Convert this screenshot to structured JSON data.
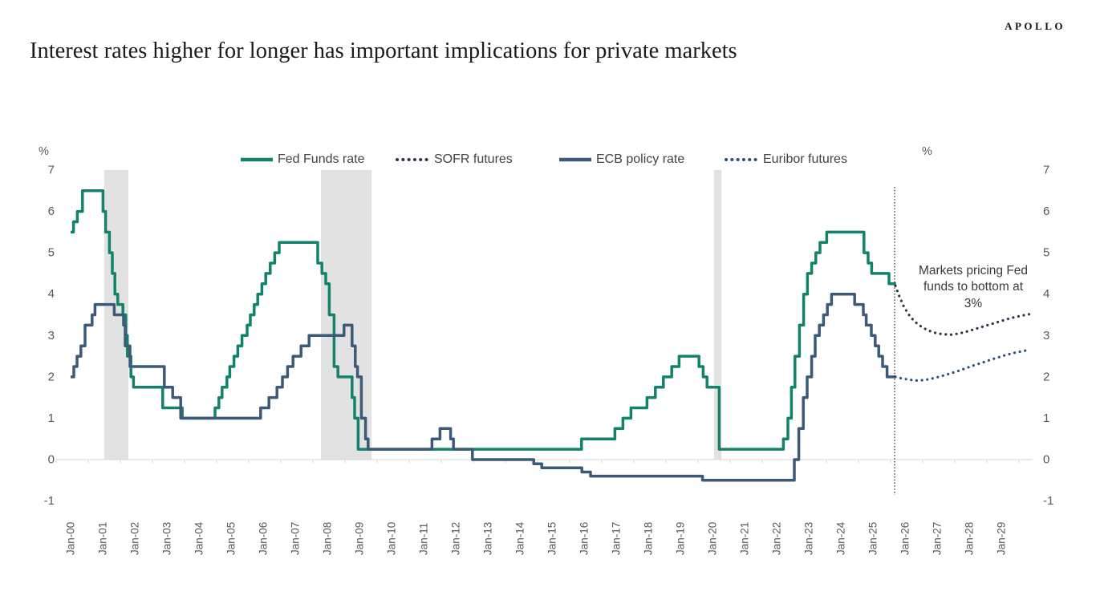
{
  "brand": "APOLLO",
  "title": "Interest rates higher for longer has important implications for private markets",
  "annotation_lines": [
    "Markets pricing Fed",
    "funds to bottom at",
    "3%"
  ],
  "chart_data": {
    "type": "line",
    "title": "Interest rates higher for longer has important implications for private markets",
    "y_axis": {
      "unit": "%",
      "min": -1,
      "max": 7,
      "ticks": [
        7,
        6,
        5,
        4,
        3,
        2,
        1,
        0,
        -1
      ],
      "dual_sided": true
    },
    "x_axis": {
      "tick_labels": [
        "Jan-00",
        "Jan-01",
        "Jan-02",
        "Jan-03",
        "Jan-04",
        "Jan-05",
        "Jan-06",
        "Jan-07",
        "Jan-08",
        "Jan-09",
        "Jan-10",
        "Jan-11",
        "Jan-12",
        "Jan-13",
        "Jan-14",
        "Jan-15",
        "Jan-16",
        "Jan-17",
        "Jan-18",
        "Jan-19",
        "Jan-20",
        "Jan-21",
        "Jan-22",
        "Jan-23",
        "Jan-24",
        "Jan-25",
        "Jan-26",
        "Jan-27",
        "Jan-28",
        "Jan-29"
      ]
    },
    "legend_position": "top",
    "grid": false,
    "recession_bands": [
      {
        "from": 2001.05,
        "to": 2001.8
      },
      {
        "from": 2007.8,
        "to": 2009.38
      },
      {
        "from": 2020.05,
        "to": 2020.28
      }
    ],
    "forecast_divider": 2025.675,
    "annotation": "Markets pricing Fed funds to bottom at 3%",
    "colors": {
      "recession_band": "#e2e2e2",
      "axis_line": "#d6d6d6",
      "axis_text": "#595959",
      "divider": "#222222"
    },
    "series": [
      {
        "name": "Fed Funds rate",
        "color": "#12826b",
        "style": "solid",
        "interp": "step",
        "end": 2025.72,
        "points": [
          [
            2000.0,
            5.5
          ],
          [
            2000.09,
            5.75
          ],
          [
            2000.21,
            6.0
          ],
          [
            2000.37,
            6.5
          ],
          [
            2001.01,
            6.0
          ],
          [
            2001.09,
            5.5
          ],
          [
            2001.21,
            5.0
          ],
          [
            2001.3,
            4.5
          ],
          [
            2001.38,
            4.0
          ],
          [
            2001.47,
            3.75
          ],
          [
            2001.63,
            3.5
          ],
          [
            2001.72,
            3.0
          ],
          [
            2001.77,
            2.5
          ],
          [
            2001.88,
            2.0
          ],
          [
            2001.96,
            1.75
          ],
          [
            2002.87,
            1.25
          ],
          [
            2003.48,
            1.0
          ],
          [
            2004.5,
            1.25
          ],
          [
            2004.62,
            1.5
          ],
          [
            2004.72,
            1.75
          ],
          [
            2004.87,
            2.0
          ],
          [
            2004.96,
            2.25
          ],
          [
            2005.09,
            2.5
          ],
          [
            2005.21,
            2.75
          ],
          [
            2005.34,
            3.0
          ],
          [
            2005.5,
            3.25
          ],
          [
            2005.6,
            3.5
          ],
          [
            2005.72,
            3.75
          ],
          [
            2005.83,
            4.0
          ],
          [
            2005.96,
            4.25
          ],
          [
            2006.08,
            4.5
          ],
          [
            2006.22,
            4.75
          ],
          [
            2006.36,
            5.0
          ],
          [
            2006.5,
            5.25
          ],
          [
            2007.7,
            4.75
          ],
          [
            2007.83,
            4.5
          ],
          [
            2007.95,
            4.25
          ],
          [
            2008.06,
            3.5
          ],
          [
            2008.21,
            2.25
          ],
          [
            2008.33,
            2.0
          ],
          [
            2008.77,
            1.5
          ],
          [
            2008.85,
            1.0
          ],
          [
            2008.96,
            0.25
          ],
          [
            2015.92,
            0.5
          ],
          [
            2016.96,
            0.75
          ],
          [
            2017.21,
            1.0
          ],
          [
            2017.46,
            1.25
          ],
          [
            2017.96,
            1.5
          ],
          [
            2018.22,
            1.75
          ],
          [
            2018.47,
            2.0
          ],
          [
            2018.73,
            2.25
          ],
          [
            2018.96,
            2.5
          ],
          [
            2019.58,
            2.25
          ],
          [
            2019.71,
            2.0
          ],
          [
            2019.83,
            1.75
          ],
          [
            2020.21,
            0.25
          ],
          [
            2022.21,
            0.5
          ],
          [
            2022.35,
            1.0
          ],
          [
            2022.46,
            1.75
          ],
          [
            2022.57,
            2.5
          ],
          [
            2022.71,
            3.25
          ],
          [
            2022.84,
            4.0
          ],
          [
            2022.96,
            4.5
          ],
          [
            2023.09,
            4.75
          ],
          [
            2023.22,
            5.0
          ],
          [
            2023.35,
            5.25
          ],
          [
            2023.56,
            5.5
          ],
          [
            2024.72,
            5.0
          ],
          [
            2024.85,
            4.75
          ],
          [
            2024.96,
            4.5
          ],
          [
            2025.5,
            4.25
          ]
        ]
      },
      {
        "name": "SOFR futures",
        "color": "#2b3848",
        "style": "dotted",
        "interp": "linear",
        "points": [
          [
            2025.7,
            4.2
          ],
          [
            2025.82,
            3.95
          ],
          [
            2025.95,
            3.72
          ],
          [
            2026.1,
            3.52
          ],
          [
            2026.25,
            3.38
          ],
          [
            2026.4,
            3.27
          ],
          [
            2026.6,
            3.17
          ],
          [
            2026.8,
            3.1
          ],
          [
            2027.0,
            3.05
          ],
          [
            2027.2,
            3.03
          ],
          [
            2027.45,
            3.02
          ],
          [
            2027.7,
            3.05
          ],
          [
            2027.95,
            3.1
          ],
          [
            2028.2,
            3.16
          ],
          [
            2028.45,
            3.22
          ],
          [
            2028.7,
            3.28
          ],
          [
            2028.95,
            3.34
          ],
          [
            2029.2,
            3.4
          ],
          [
            2029.45,
            3.45
          ],
          [
            2029.7,
            3.49
          ],
          [
            2029.9,
            3.52
          ]
        ]
      },
      {
        "name": "ECB policy rate",
        "color": "#3c5a78",
        "style": "solid",
        "interp": "step",
        "end": 2025.72,
        "points": [
          [
            2000.0,
            2.0
          ],
          [
            2000.1,
            2.25
          ],
          [
            2000.2,
            2.5
          ],
          [
            2000.32,
            2.75
          ],
          [
            2000.45,
            3.25
          ],
          [
            2000.67,
            3.5
          ],
          [
            2000.76,
            3.75
          ],
          [
            2001.36,
            3.5
          ],
          [
            2001.65,
            3.25
          ],
          [
            2001.7,
            2.75
          ],
          [
            2001.85,
            2.25
          ],
          [
            2002.92,
            1.75
          ],
          [
            2003.18,
            1.5
          ],
          [
            2003.43,
            1.0
          ],
          [
            2005.92,
            1.25
          ],
          [
            2006.18,
            1.5
          ],
          [
            2006.43,
            1.75
          ],
          [
            2006.6,
            2.0
          ],
          [
            2006.76,
            2.25
          ],
          [
            2006.93,
            2.5
          ],
          [
            2007.18,
            2.75
          ],
          [
            2007.43,
            3.0
          ],
          [
            2008.52,
            3.25
          ],
          [
            2008.77,
            2.75
          ],
          [
            2008.87,
            2.25
          ],
          [
            2008.94,
            2.0
          ],
          [
            2009.06,
            1.0
          ],
          [
            2009.19,
            0.5
          ],
          [
            2009.27,
            0.25
          ],
          [
            2011.26,
            0.5
          ],
          [
            2011.51,
            0.75
          ],
          [
            2011.84,
            0.5
          ],
          [
            2011.93,
            0.25
          ],
          [
            2012.52,
            0.0
          ],
          [
            2014.43,
            -0.1
          ],
          [
            2014.68,
            -0.2
          ],
          [
            2015.93,
            -0.3
          ],
          [
            2016.2,
            -0.4
          ],
          [
            2019.69,
            -0.5
          ],
          [
            2022.55,
            0.0
          ],
          [
            2022.69,
            0.75
          ],
          [
            2022.83,
            1.5
          ],
          [
            2022.95,
            2.0
          ],
          [
            2023.09,
            2.5
          ],
          [
            2023.2,
            3.0
          ],
          [
            2023.33,
            3.25
          ],
          [
            2023.46,
            3.5
          ],
          [
            2023.58,
            3.75
          ],
          [
            2023.71,
            4.0
          ],
          [
            2024.43,
            3.75
          ],
          [
            2024.7,
            3.5
          ],
          [
            2024.79,
            3.25
          ],
          [
            2024.95,
            3.0
          ],
          [
            2025.07,
            2.75
          ],
          [
            2025.18,
            2.5
          ],
          [
            2025.3,
            2.25
          ],
          [
            2025.44,
            2.0
          ]
        ]
      },
      {
        "name": "Euribor futures",
        "color": "#2f5178",
        "style": "dotted",
        "interp": "linear",
        "points": [
          [
            2025.7,
            2.0
          ],
          [
            2025.9,
            1.96
          ],
          [
            2026.15,
            1.93
          ],
          [
            2026.4,
            1.91
          ],
          [
            2026.65,
            1.93
          ],
          [
            2026.9,
            1.97
          ],
          [
            2027.15,
            2.02
          ],
          [
            2027.4,
            2.08
          ],
          [
            2027.65,
            2.14
          ],
          [
            2027.9,
            2.21
          ],
          [
            2028.15,
            2.28
          ],
          [
            2028.4,
            2.34
          ],
          [
            2028.65,
            2.41
          ],
          [
            2028.9,
            2.47
          ],
          [
            2029.15,
            2.53
          ],
          [
            2029.4,
            2.58
          ],
          [
            2029.65,
            2.62
          ],
          [
            2029.9,
            2.66
          ]
        ]
      }
    ]
  }
}
